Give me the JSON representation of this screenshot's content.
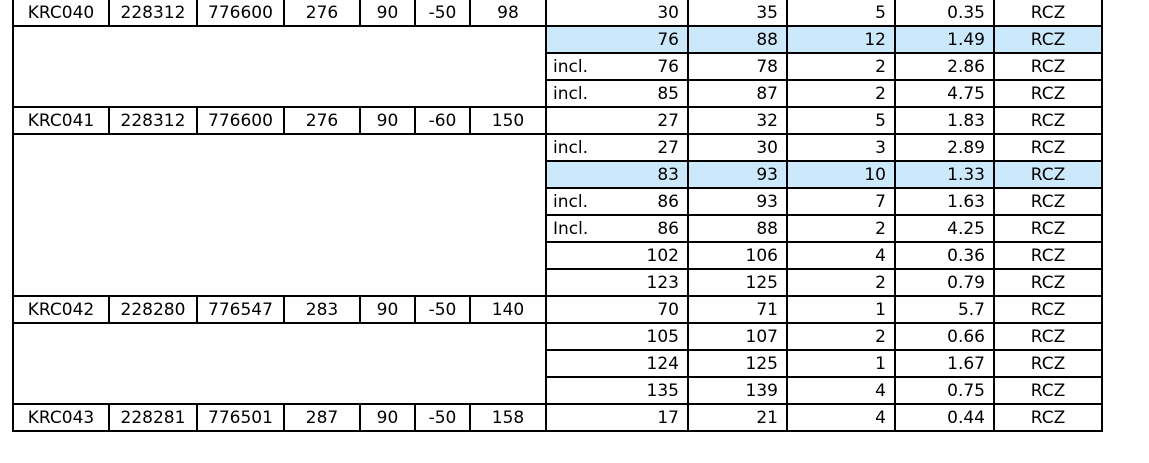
{
  "holes": [
    {
      "hole_id": "KRC040",
      "east": "228312",
      "north": "776600",
      "rl": "276",
      "azimuth": "90",
      "dip": "-50",
      "depth": "98",
      "intercepts": [
        {
          "prefix": "",
          "from": "30",
          "to": "35",
          "width": "5",
          "grade": "0.35",
          "type": "RCZ",
          "highlight": false
        },
        {
          "prefix": "",
          "from": "76",
          "to": "88",
          "width": "12",
          "grade": "1.49",
          "type": "RCZ",
          "highlight": true
        },
        {
          "prefix": "incl.",
          "from": "76",
          "to": "78",
          "width": "2",
          "grade": "2.86",
          "type": "RCZ",
          "highlight": false
        },
        {
          "prefix": "incl.",
          "from": "85",
          "to": "87",
          "width": "2",
          "grade": "4.75",
          "type": "RCZ",
          "highlight": false
        }
      ]
    },
    {
      "hole_id": "KRC041",
      "east": "228312",
      "north": "776600",
      "rl": "276",
      "azimuth": "90",
      "dip": "-60",
      "depth": "150",
      "intercepts": [
        {
          "prefix": "",
          "from": "27",
          "to": "32",
          "width": "5",
          "grade": "1.83",
          "type": "RCZ",
          "highlight": false
        },
        {
          "prefix": "incl.",
          "from": "27",
          "to": "30",
          "width": "3",
          "grade": "2.89",
          "type": "RCZ",
          "highlight": false
        },
        {
          "prefix": "",
          "from": "83",
          "to": "93",
          "width": "10",
          "grade": "1.33",
          "type": "RCZ",
          "highlight": true
        },
        {
          "prefix": "incl.",
          "from": "86",
          "to": "93",
          "width": "7",
          "grade": "1.63",
          "type": "RCZ",
          "highlight": false
        },
        {
          "prefix": "Incl.",
          "from": "86",
          "to": "88",
          "width": "2",
          "grade": "4.25",
          "type": "RCZ",
          "highlight": false
        },
        {
          "prefix": "",
          "from": "102",
          "to": "106",
          "width": "4",
          "grade": "0.36",
          "type": "RCZ",
          "highlight": false
        },
        {
          "prefix": "",
          "from": "123",
          "to": "125",
          "width": "2",
          "grade": "0.79",
          "type": "RCZ",
          "highlight": false
        }
      ]
    },
    {
      "hole_id": "KRC042",
      "east": "228280",
      "north": "776547",
      "rl": "283",
      "azimuth": "90",
      "dip": "-50",
      "depth": "140",
      "intercepts": [
        {
          "prefix": "",
          "from": "70",
          "to": "71",
          "width": "1",
          "grade": "5.7",
          "type": "RCZ",
          "highlight": false
        },
        {
          "prefix": "",
          "from": "105",
          "to": "107",
          "width": "2",
          "grade": "0.66",
          "type": "RCZ",
          "highlight": false
        },
        {
          "prefix": "",
          "from": "124",
          "to": "125",
          "width": "1",
          "grade": "1.67",
          "type": "RCZ",
          "highlight": false
        },
        {
          "prefix": "",
          "from": "135",
          "to": "139",
          "width": "4",
          "grade": "0.75",
          "type": "RCZ",
          "highlight": false
        }
      ]
    },
    {
      "hole_id": "KRC043",
      "east": "228281",
      "north": "776501",
      "rl": "287",
      "azimuth": "90",
      "dip": "-50",
      "depth": "158",
      "intercepts": [
        {
          "prefix": "",
          "from": "17",
          "to": "21",
          "width": "4",
          "grade": "0.44",
          "type": "RCZ",
          "highlight": false
        }
      ]
    }
  ],
  "colors": {
    "highlight": "#cce9fb",
    "border": "#000000"
  }
}
